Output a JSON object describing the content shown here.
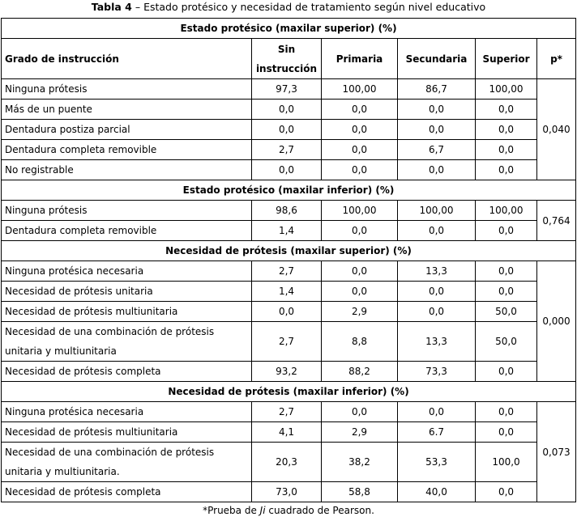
{
  "caption": {
    "label": "Tabla 4",
    "text": " – Estado protésico y necesidad de tratamiento según nivel educativo"
  },
  "table": {
    "header": [
      "Grado de instrucción",
      "Sin instrucción",
      "Primaria",
      "Secundaria",
      "Superior",
      "p*"
    ],
    "sections": [
      {
        "title": "Estado protésico (maxilar superior) (%)",
        "p": "0,040",
        "rows": [
          [
            "Ninguna prótesis",
            "97,3",
            "100,00",
            "86,7",
            "100,00"
          ],
          [
            "Más de un puente",
            "0,0",
            "0,0",
            "0,0",
            "0,0"
          ],
          [
            "Dentadura postiza parcial",
            "0,0",
            "0,0",
            "0,0",
            "0,0"
          ],
          [
            "Dentadura completa removible",
            "2,7",
            "0,0",
            "6,7",
            "0,0"
          ],
          [
            "No registrable",
            "0,0",
            "0,0",
            "0,0",
            "0,0"
          ]
        ]
      },
      {
        "title": "Estado protésico (maxilar inferior) (%)",
        "p": "0,764",
        "rows": [
          [
            "Ninguna prótesis",
            "98,6",
            "100,00",
            "100,00",
            "100,00"
          ],
          [
            "Dentadura completa removible",
            "1,4",
            "0,0",
            "0,0",
            "0,0"
          ]
        ]
      },
      {
        "title": "Necesidad de prótesis (maxilar superior) (%)",
        "p": "0,000",
        "rows": [
          [
            "Ninguna protésica necesaria",
            "2,7",
            "0,0",
            "13,3",
            "0,0"
          ],
          [
            "Necesidad de prótesis unitaria",
            "1,4",
            "0,0",
            "0,0",
            "0,0"
          ],
          [
            "Necesidad de prótesis multiunitaria",
            "0,0",
            "2,9",
            "0,0",
            "50,0"
          ],
          [
            "Necesidad de una combinación de prótesis unitaria y multiunitaria",
            "2,7",
            "8,8",
            "13,3",
            "50,0"
          ],
          [
            "Necesidad de prótesis completa",
            "93,2",
            "88,2",
            "73,3",
            "0,0"
          ]
        ]
      },
      {
        "title": "Necesidad de prótesis (maxilar inferior) (%)",
        "p": "0,073",
        "rows": [
          [
            "Ninguna protésica necesaria",
            "2,7",
            "0,0",
            "0,0",
            "0,0"
          ],
          [
            "Necesidad de prótesis multiunitaria",
            "4,1",
            "2,9",
            "6.7",
            "0,0"
          ],
          [
            "Necesidad de una combinación de prótesis unitaria y multiunitaria.",
            "20,3",
            "38,2",
            "53,3",
            "100,0"
          ],
          [
            "Necesidad de prótesis completa",
            "73,0",
            "58,8",
            "40,0",
            "0,0"
          ]
        ]
      }
    ]
  },
  "footnote": {
    "before": "*Prueba de ",
    "italic": "Ji",
    "after": " cuadrado de Pearson."
  }
}
